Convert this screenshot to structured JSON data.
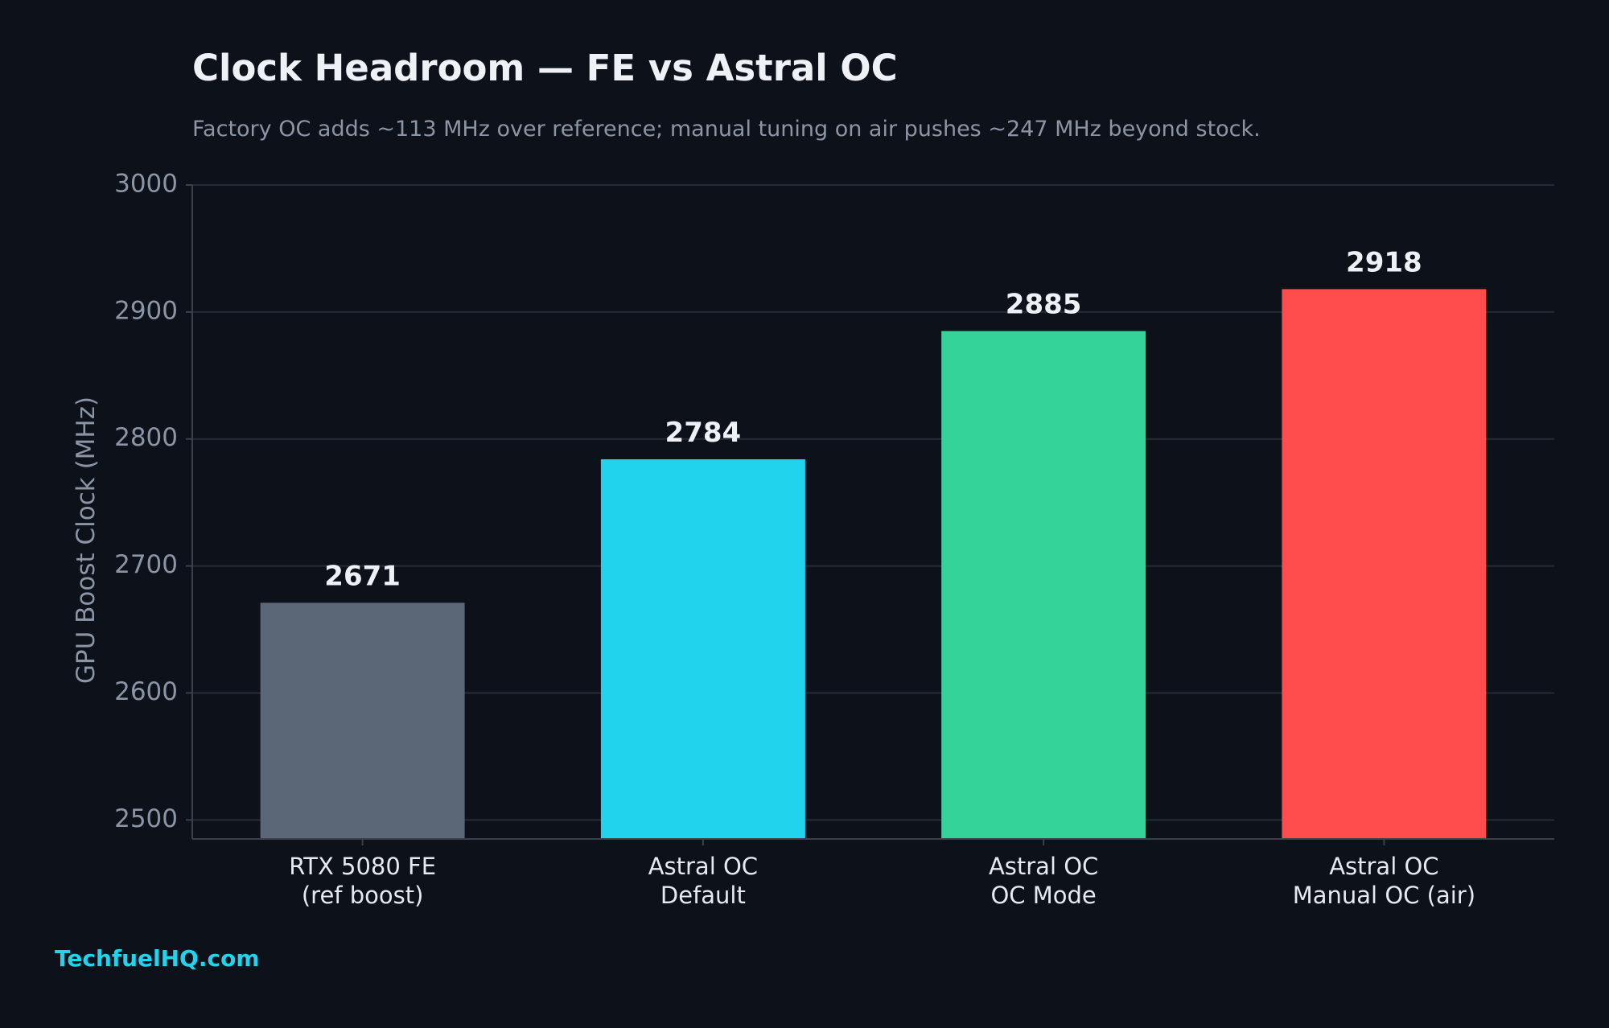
{
  "title": "Clock Headroom — FE vs Astral OC",
  "subtitle": "Factory OC adds ~113 MHz over reference; manual tuning on air pushes ~247 MHz beyond stock.",
  "watermark": "TechfuelHQ.com",
  "colors": {
    "background": "#0d1119",
    "grid": "#262c37",
    "axis": "#3a414d"
  },
  "chart_data": {
    "type": "bar",
    "categories": [
      [
        "RTX 5080 FE",
        "(ref boost)"
      ],
      [
        "Astral OC",
        "Default"
      ],
      [
        "Astral OC",
        "OC Mode"
      ],
      [
        "Astral OC",
        "Manual OC (air)"
      ]
    ],
    "values": [
      2671,
      2784,
      2885,
      2918
    ],
    "bar_colors": [
      "#5b6776",
      "#22d3ee",
      "#34d399",
      "#ff4d4d"
    ],
    "ylabel": "GPU Boost Clock (MHz)",
    "ylim": [
      2485,
      3000
    ],
    "yticks": [
      2500,
      2600,
      2700,
      2800,
      2900,
      3000
    ],
    "grid": true,
    "legend": "none"
  }
}
